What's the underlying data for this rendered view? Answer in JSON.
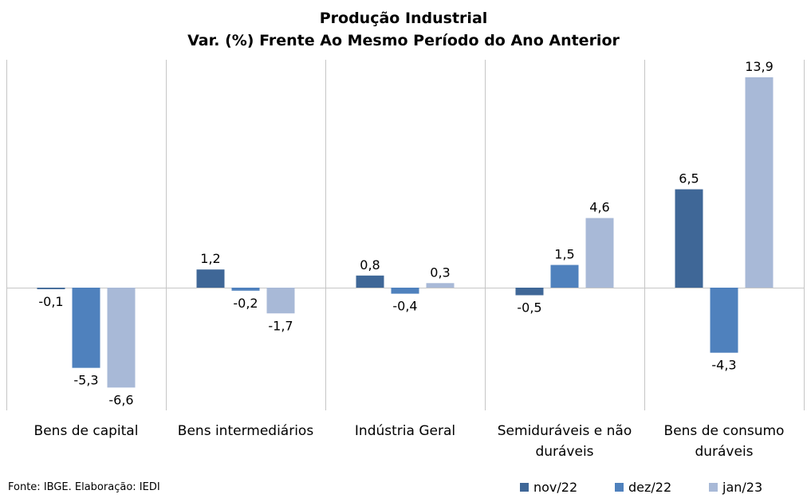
{
  "chart_data": {
    "type": "bar",
    "title": "Produção Industrial",
    "subtitle": "Var. (%) Frente Ao Mesmo Período do Ano Anterior",
    "categories": [
      "Bens de capital",
      "Bens intermediários",
      "Indústria Geral",
      "Semiduráveis e não duráveis",
      "Bens de consumo duráveis"
    ],
    "series": [
      {
        "name": "nov/22",
        "color": "#3f6797",
        "values": [
          -0.1,
          1.2,
          0.8,
          -0.5,
          6.5
        ],
        "labels": [
          "-0,1",
          "1,2",
          "0,8",
          "-0,5",
          "6,5"
        ]
      },
      {
        "name": "dez/22",
        "color": "#4f81bd",
        "values": [
          -5.3,
          -0.2,
          -0.4,
          1.5,
          -4.3
        ],
        "labels": [
          "-5,3",
          "-0,2",
          "-0,4",
          "1,5",
          "-4,3"
        ]
      },
      {
        "name": "jan/23",
        "color": "#a8b9d7",
        "values": [
          -6.6,
          -1.7,
          0.3,
          4.6,
          13.9
        ],
        "labels": [
          "-6,6",
          "-1,7",
          "0,3",
          "4,6",
          "13,9"
        ]
      }
    ],
    "ylim": [
      -8,
      15
    ],
    "grid": "vertical separators",
    "legend_position": "bottom-right"
  },
  "source": "Fonte: IBGE. Elaboração: IEDI"
}
